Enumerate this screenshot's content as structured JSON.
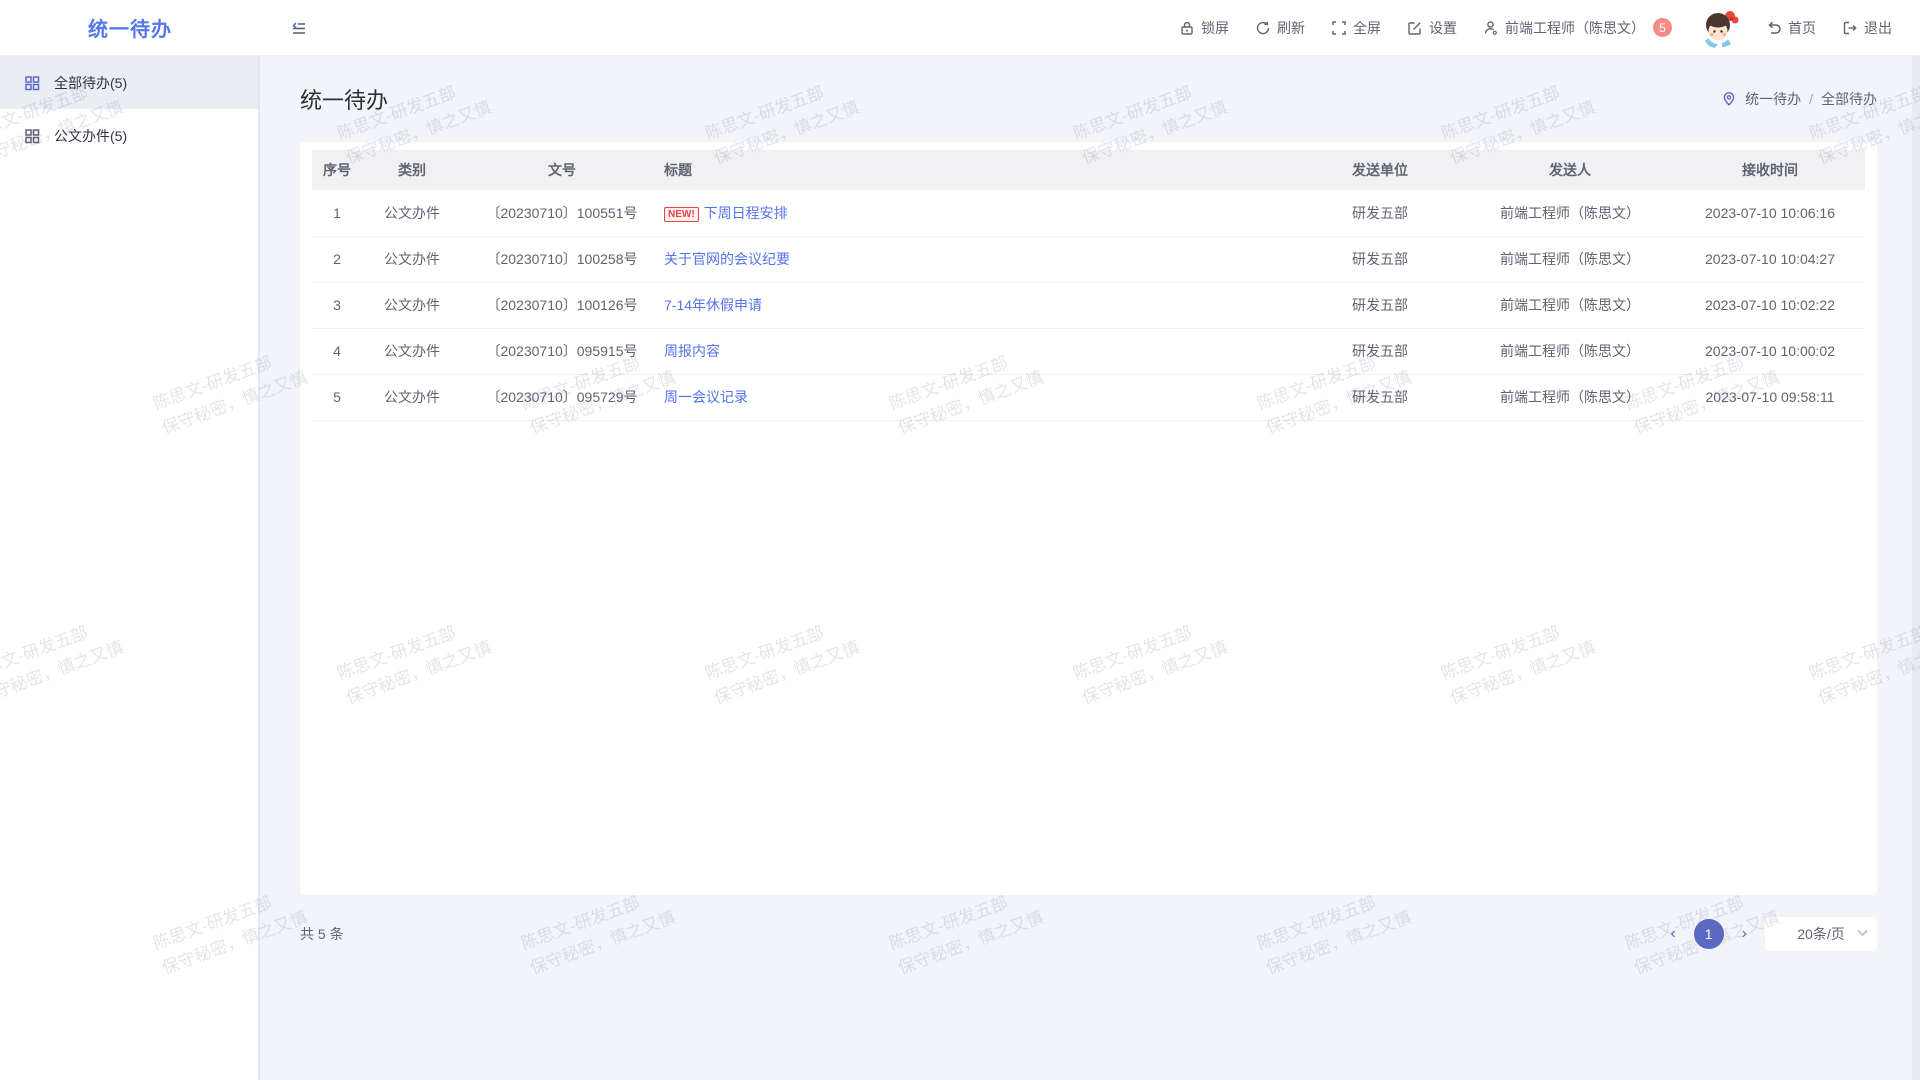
{
  "app": {
    "logo": "统一待办"
  },
  "header": {
    "actions": [
      {
        "label": "锁屏"
      },
      {
        "label": "刷新"
      },
      {
        "label": "全屏"
      },
      {
        "label": "设置"
      }
    ],
    "user": {
      "label": "前端工程师（陈思文）",
      "badge": "5"
    },
    "home_label": "首页",
    "logout_label": "退出"
  },
  "sidebar": {
    "items": [
      {
        "label": "全部待办(5)",
        "active": true
      },
      {
        "label": "公文办件(5)",
        "active": false
      }
    ]
  },
  "page": {
    "title": "统一待办",
    "breadcrumb": [
      "统一待办",
      "全部待办"
    ],
    "breadcrumb_separator": "/"
  },
  "table": {
    "columns": [
      "序号",
      "类别",
      "文号",
      "标题",
      "发送单位",
      "发送人",
      "接收时间"
    ],
    "new_tag": "NEW!",
    "rows": [
      {
        "no": "1",
        "category": "公文办件",
        "doc_no": "〔20230710〕100551号",
        "title": "下周日程安排",
        "is_new": true,
        "sender_unit": "研发五部",
        "sender": "前端工程师（陈思文）",
        "received_at": "2023-07-10 10:06:16"
      },
      {
        "no": "2",
        "category": "公文办件",
        "doc_no": "〔20230710〕100258号",
        "title": "关于官网的会议纪要",
        "is_new": false,
        "sender_unit": "研发五部",
        "sender": "前端工程师（陈思文）",
        "received_at": "2023-07-10 10:04:27"
      },
      {
        "no": "3",
        "category": "公文办件",
        "doc_no": "〔20230710〕100126号",
        "title": "7-14年休假申请",
        "is_new": false,
        "sender_unit": "研发五部",
        "sender": "前端工程师（陈思文）",
        "received_at": "2023-07-10 10:02:22"
      },
      {
        "no": "4",
        "category": "公文办件",
        "doc_no": "〔20230710〕095915号",
        "title": "周报内容",
        "is_new": false,
        "sender_unit": "研发五部",
        "sender": "前端工程师（陈思文）",
        "received_at": "2023-07-10 10:00:02"
      },
      {
        "no": "5",
        "category": "公文办件",
        "doc_no": "〔20230710〕095729号",
        "title": "周一会议记录",
        "is_new": false,
        "sender_unit": "研发五部",
        "sender": "前端工程师（陈思文）",
        "received_at": "2023-07-10 09:58:11"
      }
    ]
  },
  "pagination": {
    "total_label": "共 5 条",
    "prev_label": "‹",
    "next_label": "›",
    "current_page": "1",
    "page_size_label": "20条/页"
  },
  "watermark": {
    "line1": "陈思文-研发五部",
    "line2": "保守秘密，慎之又慎"
  },
  "colors": {
    "accent": "#5577e8",
    "link": "#5573e8",
    "pager": "#5a6ac2",
    "badge": "#f78989",
    "new_tag": "#e64545"
  }
}
